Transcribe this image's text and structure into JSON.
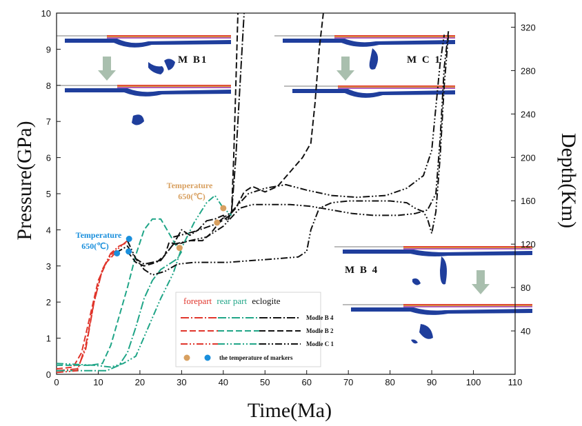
{
  "colors": {
    "forepart": "#e0352b",
    "rear_part": "#1fa587",
    "eclogite": "#111111",
    "marker_orange": "#d8a060",
    "marker_blue": "#1a8fdc",
    "arrow": "#a9bfae",
    "slab_blue": "#1f3e9c"
  },
  "chart_data": {
    "type": "line",
    "xlabel": "Time(Ma)",
    "ylabel": "Pressure(GPa)",
    "y2label": "Depth(Km)",
    "xlim": [
      0,
      110
    ],
    "ylim": [
      0,
      10
    ],
    "y2lim": [
      0,
      333
    ],
    "x_ticks": [
      "0",
      "10",
      "20",
      "30",
      "40",
      "50",
      "60",
      "70",
      "80",
      "90",
      "100",
      "110"
    ],
    "y_ticks": [
      "0",
      "1",
      "2",
      "3",
      "4",
      "5",
      "6",
      "7",
      "8",
      "9",
      "10"
    ],
    "y2_ticks": [
      "40",
      "80",
      "120",
      "160",
      "200",
      "240",
      "280",
      "320"
    ],
    "y2_tick_values": [
      40,
      80,
      120,
      160,
      200,
      240,
      280,
      320
    ],
    "series": [
      {
        "group": "Modle B 4",
        "part": "forepart",
        "style": "dashdot",
        "points": [
          [
            0,
            0.1
          ],
          [
            5,
            0.15
          ],
          [
            7,
            0.7
          ],
          [
            9,
            2.0
          ],
          [
            11,
            2.9
          ],
          [
            13,
            3.35
          ],
          [
            15,
            3.55
          ],
          [
            17,
            3.65
          ]
        ]
      },
      {
        "group": "Modle B 4",
        "part": "rear part",
        "style": "dashdot",
        "points": [
          [
            0,
            0.1
          ],
          [
            12,
            0.1
          ],
          [
            15,
            0.25
          ],
          [
            17,
            0.6
          ],
          [
            19,
            1.3
          ],
          [
            21,
            2.1
          ],
          [
            23,
            2.6
          ],
          [
            25,
            2.9
          ],
          [
            27,
            3.05
          ],
          [
            29,
            3.2
          ],
          [
            30,
            3.4
          ]
        ]
      },
      {
        "group": "Modle B 4",
        "part": "eclogite",
        "style": "dashdot",
        "points": [
          [
            14,
            3.35
          ],
          [
            17,
            3.55
          ],
          [
            19,
            3.2
          ],
          [
            21,
            3.05
          ],
          [
            25,
            3.15
          ],
          [
            28,
            3.6
          ],
          [
            30,
            4.0
          ],
          [
            32,
            3.85
          ],
          [
            34,
            4.0
          ],
          [
            36,
            4.25
          ],
          [
            38,
            4.3
          ],
          [
            40,
            4.4
          ],
          [
            41,
            4.25
          ],
          [
            42,
            4.5
          ],
          [
            43,
            6.0
          ],
          [
            44,
            8.0
          ],
          [
            45,
            10.0
          ]
        ]
      },
      {
        "group": "Modle B 2",
        "part": "forepart",
        "style": "dashed",
        "points": [
          [
            0,
            0.15
          ],
          [
            4,
            0.2
          ],
          [
            6,
            0.6
          ],
          [
            8,
            1.6
          ],
          [
            10,
            2.6
          ],
          [
            12,
            3.1
          ],
          [
            14,
            3.35
          ]
        ]
      },
      {
        "group": "Modle B 2",
        "part": "rear part",
        "style": "dashed",
        "points": [
          [
            0,
            0.25
          ],
          [
            8,
            0.25
          ],
          [
            11,
            0.3
          ],
          [
            13,
            0.8
          ],
          [
            15,
            1.6
          ],
          [
            17,
            2.4
          ],
          [
            19,
            3.3
          ],
          [
            21,
            4.0
          ],
          [
            23,
            4.3
          ],
          [
            25,
            4.3
          ],
          [
            27,
            3.9
          ],
          [
            29,
            3.5
          ]
        ]
      },
      {
        "group": "Modle B 2",
        "part": "eclogite",
        "style": "dashed",
        "points": [
          [
            17,
            3.4
          ],
          [
            19,
            3.1
          ],
          [
            21,
            3.0
          ],
          [
            24,
            3.1
          ],
          [
            26,
            3.3
          ],
          [
            27,
            3.65
          ],
          [
            29,
            3.6
          ],
          [
            32,
            3.7
          ],
          [
            35,
            3.7
          ],
          [
            37,
            3.9
          ],
          [
            39,
            4.2
          ],
          [
            41,
            4.35
          ],
          [
            43,
            4.6
          ],
          [
            45,
            5.05
          ],
          [
            47,
            5.2
          ],
          [
            50,
            5.05
          ],
          [
            53,
            5.2
          ],
          [
            56,
            5.6
          ],
          [
            59,
            6.0
          ],
          [
            61,
            6.4
          ],
          [
            62,
            7.5
          ],
          [
            63,
            9.0
          ],
          [
            64,
            10.0
          ]
        ]
      },
      {
        "group": "Modle C 1",
        "part": "forepart",
        "style": "dashdotdot",
        "points": [
          [
            0,
            0.05
          ],
          [
            5,
            0.1
          ],
          [
            7,
            0.8
          ],
          [
            9,
            2.0
          ],
          [
            11,
            2.9
          ],
          [
            13,
            3.3
          ],
          [
            15,
            3.5
          ],
          [
            17,
            3.7
          ]
        ]
      },
      {
        "group": "Modle C 1",
        "part": "rear part",
        "style": "dashdotdot",
        "points": [
          [
            0,
            0.3
          ],
          [
            9,
            0.25
          ],
          [
            13,
            0.2
          ],
          [
            16,
            0.3
          ],
          [
            19,
            0.5
          ],
          [
            22,
            1.3
          ],
          [
            25,
            2.1
          ],
          [
            28,
            2.8
          ],
          [
            30,
            3.5
          ],
          [
            33,
            4.2
          ],
          [
            36,
            4.75
          ],
          [
            38,
            4.95
          ],
          [
            40,
            4.6
          ],
          [
            42,
            4.4
          ]
        ]
      },
      {
        "group": "Modle C 1",
        "part": "eclogite",
        "style": "dashdotdot",
        "points": [
          [
            17,
            3.7
          ],
          [
            19,
            3.2
          ],
          [
            21,
            2.9
          ],
          [
            23,
            2.75
          ],
          [
            26,
            2.85
          ],
          [
            29,
            3.05
          ],
          [
            33,
            3.1
          ],
          [
            37,
            3.1
          ],
          [
            41,
            3.1
          ],
          [
            47,
            3.15
          ],
          [
            53,
            3.2
          ],
          [
            58,
            3.25
          ],
          [
            60,
            3.4
          ],
          [
            61,
            4.0
          ],
          [
            63,
            4.6
          ],
          [
            66,
            4.75
          ],
          [
            70,
            4.8
          ],
          [
            75,
            4.8
          ],
          [
            80,
            4.8
          ],
          [
            84,
            4.75
          ],
          [
            86,
            4.6
          ],
          [
            88,
            4.5
          ],
          [
            89,
            4.3
          ],
          [
            90,
            3.9
          ],
          [
            91,
            4.5
          ],
          [
            92,
            6.0
          ],
          [
            93,
            8.0
          ],
          [
            94,
            9.4
          ]
        ]
      }
    ],
    "extra_lines": [
      {
        "group": "Modle C 1",
        "style": "dashdotdot",
        "points": [
          [
            28,
            3.6
          ],
          [
            32,
            3.7
          ],
          [
            36,
            3.8
          ],
          [
            40,
            4.1
          ],
          [
            44,
            4.6
          ],
          [
            47,
            4.7
          ],
          [
            51,
            4.7
          ],
          [
            56,
            4.7
          ],
          [
            61,
            4.65
          ],
          [
            66,
            4.55
          ],
          [
            71,
            4.45
          ],
          [
            76,
            4.4
          ],
          [
            82,
            4.4
          ],
          [
            86,
            4.45
          ],
          [
            89,
            4.55
          ],
          [
            91,
            5.0
          ],
          [
            92,
            6.5
          ],
          [
            93,
            8.5
          ],
          [
            94,
            9.5
          ]
        ]
      },
      {
        "group": "Modle C 1",
        "style": "dashdotdot",
        "points": [
          [
            28,
            3.8
          ],
          [
            33,
            3.95
          ],
          [
            38,
            4.15
          ],
          [
            42,
            4.5
          ],
          [
            46,
            5.0
          ],
          [
            50,
            5.15
          ],
          [
            55,
            5.25
          ],
          [
            60,
            5.1
          ],
          [
            66,
            4.95
          ],
          [
            72,
            4.9
          ],
          [
            79,
            4.95
          ],
          [
            84,
            5.15
          ],
          [
            88,
            5.5
          ],
          [
            90,
            6.2
          ],
          [
            91,
            7.4
          ],
          [
            92,
            8.6
          ],
          [
            93,
            9.4
          ]
        ]
      },
      {
        "group": "Modle B 2",
        "style": "dashed",
        "points": [
          [
            42,
            4.5
          ],
          [
            42.5,
            6
          ],
          [
            43,
            8
          ],
          [
            43.5,
            10
          ]
        ]
      }
    ],
    "markers": {
      "orange": [
        [
          29.5,
          3.5
        ],
        [
          38.5,
          4.2
        ],
        [
          40,
          4.6
        ]
      ],
      "blue": [
        [
          14.5,
          3.35
        ],
        [
          17.3,
          3.4
        ],
        [
          17.4,
          3.75
        ]
      ]
    },
    "annotations": [
      {
        "text1": "Temperature",
        "text2": "650(℃)",
        "color": "#d8a060"
      },
      {
        "text1": "Temperature",
        "text2": "650(℃)",
        "color": "#1a8fdc"
      }
    ],
    "legend": {
      "head_forepart": "forepart",
      "head_rear": "rear part",
      "head_eclogite": "eclogite",
      "rows": [
        "Modle B 4",
        "Modle B 2",
        "Modle C 1"
      ],
      "markers_label": "the temperature of markers"
    },
    "panel_labels": [
      "M B1",
      "M C 1",
      "M B 4"
    ]
  }
}
